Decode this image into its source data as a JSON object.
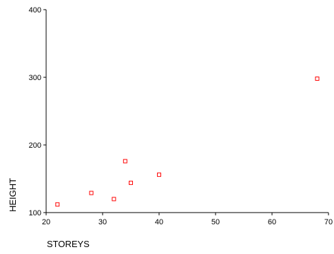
{
  "chart_data": {
    "type": "scatter",
    "title": "",
    "xlabel": "STOREYS",
    "ylabel": "HEIGHT",
    "xlim": [
      20,
      70
    ],
    "ylim": [
      100,
      400
    ],
    "x_ticks": [
      20,
      30,
      40,
      50,
      60,
      70
    ],
    "y_ticks": [
      100,
      200,
      300,
      400
    ],
    "grid": false,
    "marker": "open-square",
    "marker_color": "#ff0000",
    "points": [
      {
        "x": 22,
        "y": 112
      },
      {
        "x": 28,
        "y": 129
      },
      {
        "x": 32,
        "y": 120
      },
      {
        "x": 34,
        "y": 176
      },
      {
        "x": 35,
        "y": 144
      },
      {
        "x": 40,
        "y": 156
      },
      {
        "x": 68,
        "y": 298
      }
    ]
  }
}
